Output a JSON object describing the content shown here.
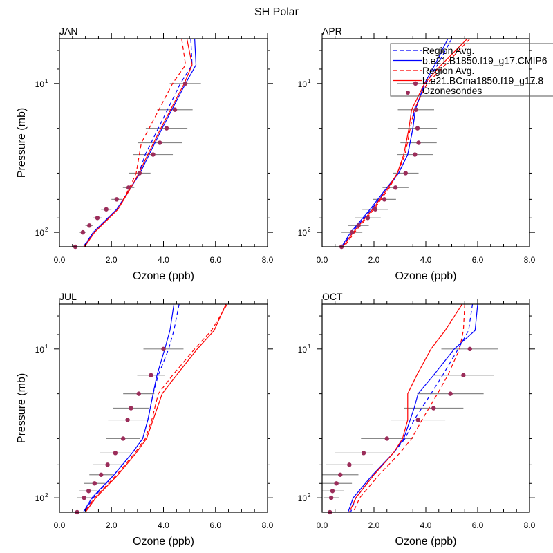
{
  "figure": {
    "title": "SH Polar"
  },
  "legend": {
    "entries": [
      {
        "label": "Region Avg.",
        "color": "#0000ff",
        "style": "dashed"
      },
      {
        "label": "b.e21.B1850.f19_g17.CMIP6",
        "color": "#0000ff",
        "style": "solid"
      },
      {
        "label": "Region Avg.",
        "color": "#ff0000",
        "style": "dashed"
      },
      {
        "label": "b.e21.BCma1850.f19_g17.8",
        "color": "#ff0000",
        "style": "solid"
      },
      {
        "label": "Ozonesondes",
        "color": "#9b2d5a",
        "style": "marker"
      }
    ]
  },
  "chart_data": [
    {
      "type": "line",
      "panel": "JAN",
      "title": "JAN",
      "xlabel": "Ozone (ppb)",
      "ylabel": "Pressure (mb)",
      "xlim": [
        0,
        8
      ],
      "ylim": [
        125,
        5
      ],
      "yscale": "log",
      "xticks": [
        "0.0",
        "2.0",
        "4.0",
        "6.0",
        "8.0"
      ],
      "yticks": [
        {
          "value": 10,
          "label": "10",
          "exp": "1"
        },
        {
          "value": 100,
          "label": "10",
          "exp": "2"
        }
      ],
      "series": [
        {
          "name": "Region Avg. (b.e21.B1850)",
          "color": "#0000ff",
          "style": "dashed",
          "p": [
            5,
            7.5,
            10,
            20,
            30,
            40,
            50,
            70,
            100,
            125
          ],
          "o": [
            5.05,
            5.1,
            4.65,
            3.8,
            3.3,
            3.05,
            2.75,
            2.2,
            1.3,
            0.92
          ]
        },
        {
          "name": "b.e21.B1850.f19_g17.CMIP6",
          "color": "#0000ff",
          "style": "solid",
          "p": [
            5,
            7.5,
            10,
            20,
            30,
            40,
            50,
            70,
            100,
            125
          ],
          "o": [
            5.2,
            5.25,
            4.85,
            3.95,
            3.45,
            3.1,
            2.75,
            2.2,
            1.3,
            0.95
          ]
        },
        {
          "name": "Region Avg. (b.e21.BCma1850)",
          "color": "#ff0000",
          "style": "dashed",
          "p": [
            5,
            7.5,
            10,
            20,
            25,
            40,
            50,
            70,
            100,
            125
          ],
          "o": [
            4.7,
            4.85,
            4.35,
            3.45,
            3.15,
            2.95,
            2.7,
            2.25,
            1.35,
            0.95
          ]
        },
        {
          "name": "b.e21.BCma1850.f19_g17.8",
          "color": "#ff0000",
          "style": "solid",
          "p": [
            5,
            7.5,
            10,
            20,
            30,
            40,
            50,
            70,
            100,
            125
          ],
          "o": [
            4.9,
            5.1,
            4.8,
            3.9,
            3.4,
            3.05,
            2.75,
            2.25,
            1.35,
            0.97
          ]
        }
      ],
      "sondes": {
        "p": [
          10,
          15,
          20,
          25,
          30,
          40,
          50,
          60,
          70,
          80,
          90,
          100,
          125
        ],
        "o": [
          4.84,
          4.44,
          4.12,
          3.86,
          3.6,
          3.08,
          2.66,
          2.2,
          1.8,
          1.46,
          1.15,
          0.9,
          0.61
        ],
        "err": [
          0.6,
          0.68,
          0.8,
          0.85,
          0.76,
          0.42,
          0.22,
          0.2,
          0.2,
          0.17,
          0.15,
          0.12,
          0.1
        ]
      }
    },
    {
      "type": "line",
      "panel": "APR",
      "title": "APR",
      "xlabel": "Ozone (ppb)",
      "ylabel": "",
      "xlim": [
        0,
        8
      ],
      "ylim": [
        125,
        5
      ],
      "yscale": "log",
      "xticks": [
        "0.0",
        "2.0",
        "4.0",
        "6.0",
        "8.0"
      ],
      "yticks": [
        {
          "value": 10,
          "label": "10",
          "exp": "1"
        },
        {
          "value": 100,
          "label": "10",
          "exp": "2"
        }
      ],
      "series": [
        {
          "name": "Region Avg. (b.e21.B1850)",
          "color": "#0000ff",
          "style": "dashed",
          "p": [
            5,
            7.5,
            10,
            15,
            20,
            30,
            40,
            50,
            70,
            100,
            125
          ],
          "o": [
            5.0,
            4.45,
            4.0,
            3.55,
            3.5,
            3.3,
            2.95,
            2.55,
            1.9,
            1.15,
            0.78
          ]
        },
        {
          "name": "b.e21.B1850.f19_g17.CMIP6",
          "color": "#0000ff",
          "style": "solid",
          "p": [
            5,
            7.5,
            10,
            15,
            20,
            30,
            40,
            50,
            70,
            100,
            125
          ],
          "o": [
            4.85,
            4.35,
            3.95,
            3.6,
            3.5,
            3.3,
            2.95,
            2.5,
            1.85,
            1.1,
            0.75
          ]
        },
        {
          "name": "Region Avg. (b.e21.BCma1850)",
          "color": "#ff0000",
          "style": "dashed",
          "p": [
            5,
            7.5,
            10,
            15,
            20,
            30,
            40,
            50,
            70,
            100,
            125
          ],
          "o": [
            5.7,
            4.75,
            4.05,
            3.55,
            3.4,
            3.2,
            2.9,
            2.6,
            2.0,
            1.25,
            0.85
          ]
        },
        {
          "name": "b.e21.BCma1850.f19_g17.8",
          "color": "#ff0000",
          "style": "solid",
          "p": [
            5,
            7.5,
            10,
            15,
            20,
            30,
            40,
            50,
            70,
            100,
            125
          ],
          "o": [
            5.6,
            4.6,
            3.95,
            3.45,
            3.35,
            3.15,
            2.9,
            2.55,
            1.95,
            1.2,
            0.8
          ]
        }
      ],
      "sondes": {
        "p": [
          10,
          15,
          20,
          25,
          30,
          40,
          50,
          60,
          70,
          80,
          90,
          100,
          125
        ],
        "o": [
          3.6,
          3.62,
          3.68,
          3.72,
          3.58,
          3.22,
          2.83,
          2.4,
          2.05,
          1.76,
          1.4,
          1.15,
          0.75
        ],
        "err": [
          0.7,
          0.7,
          0.75,
          0.7,
          0.7,
          0.5,
          0.5,
          0.45,
          0.5,
          0.5,
          0.4,
          0.4,
          0.1
        ]
      }
    },
    {
      "type": "line",
      "panel": "JUL",
      "title": "JUL",
      "xlabel": "Ozone (ppb)",
      "ylabel": "Pressure (mb)",
      "xlim": [
        0,
        8
      ],
      "ylim": [
        125,
        5
      ],
      "yscale": "log",
      "xticks": [
        "0.0",
        "2.0",
        "4.0",
        "6.0",
        "8.0"
      ],
      "yticks": [
        {
          "value": 10,
          "label": "10",
          "exp": "1"
        },
        {
          "value": 100,
          "label": "10",
          "exp": "2"
        }
      ],
      "series": [
        {
          "name": "Region Avg. (b.e21.B1850)",
          "color": "#0000ff",
          "style": "dashed",
          "p": [
            5,
            7.5,
            10,
            15,
            20,
            30,
            40,
            50,
            70,
            100,
            125
          ],
          "o": [
            4.6,
            4.4,
            4.2,
            3.8,
            3.6,
            3.4,
            3.2,
            2.8,
            2.1,
            1.3,
            0.95
          ]
        },
        {
          "name": "b.e21.B1850.f19_g17.CMIP6",
          "color": "#0000ff",
          "style": "solid",
          "p": [
            5,
            7.5,
            10,
            15,
            20,
            30,
            40,
            50,
            70,
            100,
            125
          ],
          "o": [
            4.4,
            4.25,
            4.05,
            3.75,
            3.6,
            3.4,
            3.2,
            2.8,
            2.1,
            1.25,
            0.92
          ]
        },
        {
          "name": "Region Avg. (b.e21.BCma1850)",
          "color": "#ff0000",
          "style": "dashed",
          "p": [
            5,
            7.5,
            10,
            15,
            20,
            30,
            40,
            50,
            70,
            100,
            125
          ],
          "o": [
            6.45,
            5.85,
            5.2,
            4.35,
            3.8,
            3.55,
            3.3,
            2.9,
            2.2,
            1.35,
            0.97
          ]
        },
        {
          "name": "b.e21.BCma1850.f19_g17.8",
          "color": "#ff0000",
          "style": "solid",
          "p": [
            5,
            7.5,
            10,
            15,
            20,
            30,
            40,
            50,
            70,
            100,
            125
          ],
          "o": [
            6.4,
            5.95,
            5.3,
            4.5,
            3.95,
            3.6,
            3.35,
            2.95,
            2.25,
            1.4,
            1.0
          ]
        }
      ],
      "sondes": {
        "p": [
          10,
          15,
          20,
          25,
          30,
          40,
          50,
          60,
          70,
          80,
          90,
          100,
          125
        ],
        "o": [
          4.0,
          3.52,
          3.05,
          2.75,
          2.62,
          2.45,
          2.15,
          1.85,
          1.6,
          1.35,
          1.12,
          0.95,
          0.68
        ],
        "err": [
          0.77,
          0.53,
          0.6,
          0.7,
          0.75,
          0.65,
          0.6,
          0.55,
          0.45,
          0.4,
          0.35,
          0.28,
          0.2
        ]
      }
    },
    {
      "type": "line",
      "panel": "OCT",
      "title": "OCT",
      "xlabel": "Ozone (ppb)",
      "ylabel": "",
      "xlim": [
        0,
        8
      ],
      "ylim": [
        125,
        5
      ],
      "yscale": "log",
      "xticks": [
        "0.0",
        "2.0",
        "4.0",
        "6.0",
        "8.0"
      ],
      "yticks": [
        {
          "value": 10,
          "label": "10",
          "exp": "1"
        },
        {
          "value": 100,
          "label": "10",
          "exp": "2"
        }
      ],
      "series": [
        {
          "name": "Region Avg. (b.e21.B1850)",
          "color": "#0000ff",
          "style": "dashed",
          "p": [
            5,
            7.5,
            10,
            15,
            20,
            30,
            40,
            50,
            70,
            100,
            125
          ],
          "o": [
            5.8,
            5.65,
            5.25,
            4.65,
            4.2,
            3.55,
            3.2,
            2.75,
            2.0,
            1.3,
            1.1
          ]
        },
        {
          "name": "b.e21.B1850.f19_g17.CMIP6",
          "color": "#0000ff",
          "style": "solid",
          "p": [
            5,
            7.5,
            10,
            15,
            20,
            25,
            40,
            50,
            70,
            100,
            125
          ],
          "o": [
            6.0,
            5.9,
            5.1,
            4.3,
            3.7,
            3.55,
            3.15,
            2.75,
            1.95,
            1.2,
            1.0
          ]
        },
        {
          "name": "Region Avg. (b.e21.BCma1850)",
          "color": "#ff0000",
          "style": "dashed",
          "p": [
            5,
            7.5,
            10,
            15,
            20,
            30,
            40,
            50,
            70,
            100,
            125
          ],
          "o": [
            5.5,
            5.45,
            5.3,
            4.85,
            4.45,
            3.85,
            3.45,
            3.0,
            2.2,
            1.45,
            1.2
          ]
        },
        {
          "name": "b.e21.BCma1850.f19_g17.8",
          "color": "#ff0000",
          "style": "solid",
          "p": [
            5,
            7.5,
            10,
            15,
            20,
            30,
            40,
            50,
            70,
            100,
            125
          ],
          "o": [
            5.4,
            4.75,
            4.2,
            3.65,
            3.3,
            3.3,
            3.1,
            2.75,
            2.0,
            1.3,
            1.05
          ]
        }
      ],
      "sondes": {
        "p": [
          10,
          15,
          20,
          25,
          30,
          40,
          50,
          60,
          70,
          80,
          90,
          100,
          125
        ],
        "o": [
          5.7,
          5.45,
          4.95,
          4.3,
          3.7,
          2.5,
          1.6,
          1.05,
          0.7,
          0.55,
          0.4,
          0.35,
          0.3
        ],
        "err": [
          1.1,
          1.18,
          1.28,
          1.15,
          1.05,
          1.0,
          1.1,
          0.9,
          0.7,
          0.6,
          0.45,
          0.3,
          0.2
        ]
      }
    }
  ]
}
